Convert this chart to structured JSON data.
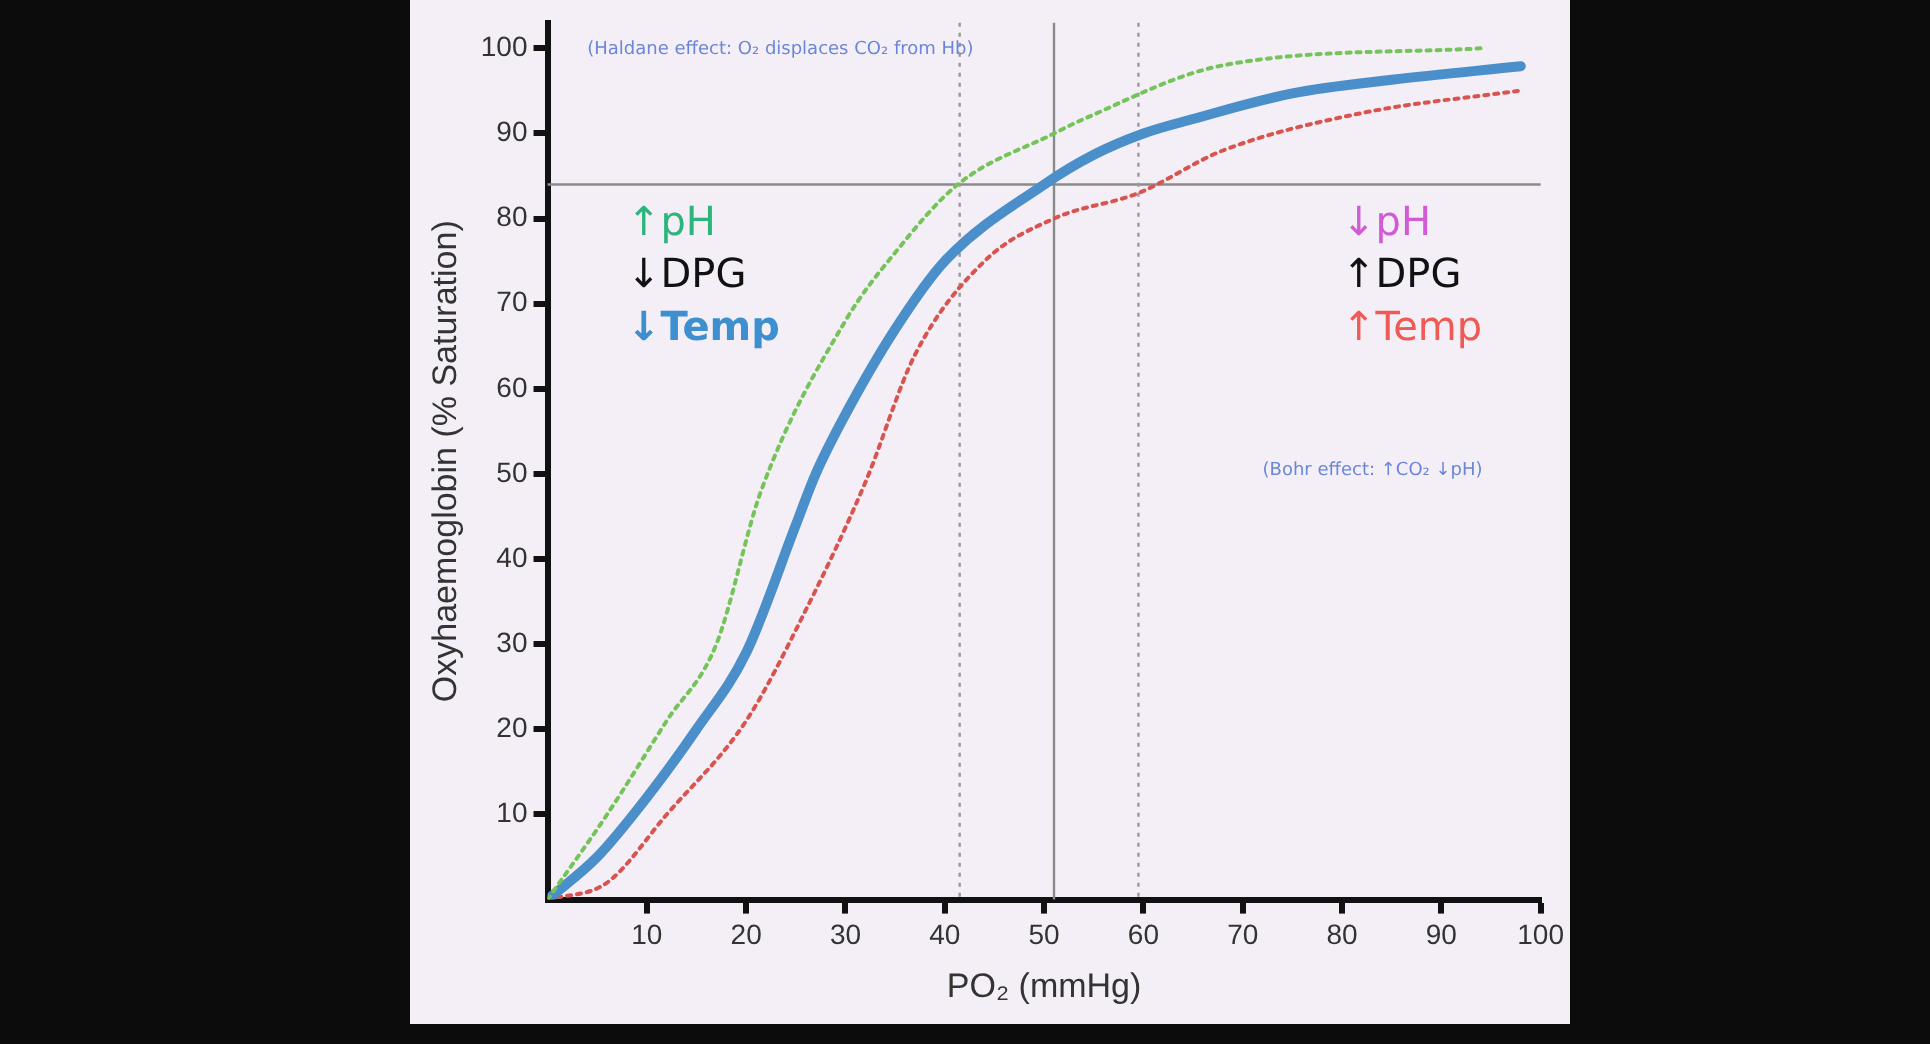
{
  "chart_data": {
    "type": "line",
    "xlabel": "PO₂ (mmHg)",
    "ylabel": "Oxyhaemoglobin (% Saturation)",
    "xlim": [
      0,
      100
    ],
    "xticks": [
      10,
      20,
      30,
      40,
      50,
      60,
      70,
      80,
      90,
      100
    ],
    "ylim": [
      0,
      103
    ],
    "yticks": [
      10,
      20,
      30,
      40,
      50,
      60,
      70,
      80,
      90,
      100
    ],
    "grid": false,
    "legend": false,
    "marker": "none",
    "series": [
      {
        "color": "#74c45a",
        "line_style": "dotted",
        "x": [
          0,
          6,
          12,
          17,
          21.5,
          30,
          35,
          41.3,
          51,
          54,
          68,
          94
        ],
        "values": [
          0,
          10,
          21,
          30,
          48,
          68,
          76,
          84,
          90,
          91.7,
          98,
          100
        ]
      },
      {
        "color": "#4a8fc9",
        "line_style": "solid",
        "x": [
          0,
          5,
          10,
          15,
          20,
          25,
          27,
          30,
          35,
          40,
          50,
          55,
          60,
          65,
          75,
          85,
          98
        ],
        "values": [
          0,
          5,
          12,
          20,
          29,
          44,
          50,
          57,
          67,
          75,
          84,
          87.5,
          90,
          91.7,
          94.7,
          96.3,
          97.9
        ]
      },
      {
        "color": "#d9534f",
        "line_style": "dotted",
        "x": [
          0,
          6,
          12,
          20,
          26,
          32,
          37,
          44,
          51,
          59.5,
          68,
          82,
          97.7
        ],
        "values": [
          0,
          2,
          10,
          21,
          34,
          49,
          64,
          75,
          80,
          83,
          88,
          92.4,
          95
        ]
      }
    ],
    "ref_lines": [
      {
        "axis": "y",
        "value": 84,
        "color": "#8a8a8a",
        "line_style": "solid"
      },
      {
        "axis": "x",
        "value": 41.5,
        "color": "#9a9a9a",
        "line_style": "dotted"
      },
      {
        "axis": "x",
        "value": 51,
        "color": "#8a8a8a",
        "line_style": "solid"
      },
      {
        "axis": "x",
        "value": 59.5,
        "color": "#9a9a9a",
        "line_style": "dotted"
      }
    ],
    "annotations": [
      "(Haldane effect: O₂ displaces CO₂ from Hb)",
      "↑pH",
      "↓DPG",
      "↓Temp",
      "↓pH",
      "↑DPG",
      "↑Temp",
      "(Bohr effect: ↑CO₂ ↓pH)"
    ]
  }
}
